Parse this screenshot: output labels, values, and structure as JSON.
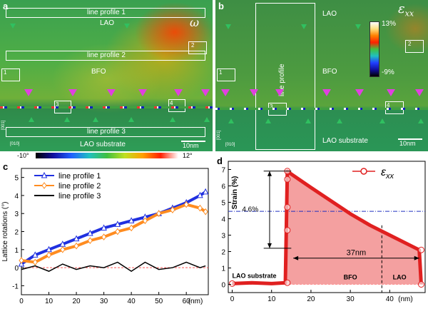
{
  "panel_a": {
    "letter": "a",
    "label_lao": "LAO",
    "label_bfo": "BFO",
    "label_substrate": "LAO substrate",
    "omega": "ω",
    "line_profile_1": "line profile 1",
    "line_profile_2": "line profile 2",
    "line_profile_3": "line profile 3",
    "box_1": "1",
    "box_2": "2",
    "box_3": "3",
    "box_4": "4",
    "axis_001": "[001]",
    "axis_010": "[010]",
    "scalebar": "10nm",
    "colorbar_min": "-10°",
    "colorbar_max": "12°"
  },
  "panel_b": {
    "letter": "b",
    "label_lao": "LAO",
    "label_bfo": "BFO",
    "label_substrate": "LAO substrate",
    "line_profile": "line profile",
    "epsilon": "ε",
    "epsilon_sub": "xx",
    "box_1": "1",
    "box_2": "2",
    "box_3": "3",
    "box_4": "4",
    "axis_001": "[001]",
    "axis_010": "[010]",
    "scalebar": "10nm",
    "colorbar_max": "13%",
    "colorbar_min": "-9%"
  },
  "chart_data": [
    {
      "panel": "c",
      "type": "line",
      "ylabel": "Lattice rotations (°)",
      "xlabel": "(nm)",
      "xlim": [
        0,
        68
      ],
      "ylim": [
        -1.5,
        5.5
      ],
      "xticks": [
        0,
        10,
        20,
        30,
        40,
        50,
        60
      ],
      "yticks": [
        -1,
        0,
        1,
        2,
        3,
        4,
        5
      ],
      "legend_position": "top-left",
      "series": [
        {
          "name": "line profile 1",
          "color": "#2030e0",
          "marker": "triangle",
          "x": [
            0,
            5,
            10,
            15,
            20,
            25,
            30,
            35,
            40,
            45,
            50,
            55,
            60,
            65,
            67
          ],
          "y": [
            0.2,
            0.7,
            1.0,
            1.3,
            1.6,
            1.9,
            2.2,
            2.4,
            2.6,
            2.8,
            3.0,
            3.3,
            3.6,
            4.0,
            4.2
          ]
        },
        {
          "name": "line profile 2",
          "color": "#ff8c20",
          "marker": "diamond",
          "x": [
            0,
            5,
            10,
            15,
            20,
            25,
            30,
            35,
            40,
            45,
            50,
            55,
            60,
            65,
            67
          ],
          "y": [
            0.4,
            0.3,
            0.7,
            1.0,
            1.2,
            1.5,
            1.7,
            2.0,
            2.2,
            2.6,
            3.0,
            3.2,
            3.5,
            3.3,
            3.1
          ]
        },
        {
          "name": "line profile 3",
          "color": "#000000",
          "marker": "none",
          "x": [
            0,
            5,
            10,
            15,
            20,
            25,
            30,
            35,
            40,
            45,
            50,
            55,
            60,
            65,
            67
          ],
          "y": [
            -0.1,
            0.1,
            -0.2,
            0.2,
            -0.1,
            0.1,
            0.0,
            0.3,
            -0.2,
            0.3,
            -0.1,
            0.0,
            0.3,
            0.0,
            0.1
          ]
        }
      ]
    },
    {
      "panel": "d",
      "type": "area",
      "ylabel": "Strain (%)",
      "xlabel": "(nm)",
      "xlim": [
        -1,
        49
      ],
      "ylim": [
        -0.5,
        7.5
      ],
      "xticks": [
        0,
        10,
        20,
        30,
        40
      ],
      "yticks": [
        0,
        1,
        2,
        3,
        4,
        5,
        6,
        7
      ],
      "legend_position": "top-right",
      "series": [
        {
          "name": "ε",
          "name_sub": "xx",
          "color": "#e02020",
          "x": [
            0,
            5,
            10,
            13.5,
            14,
            14.5,
            20,
            25,
            30,
            35,
            40,
            45,
            47.5,
            48
          ],
          "y": [
            0.05,
            0.1,
            0.05,
            0.1,
            6.9,
            6.8,
            5.9,
            5.1,
            4.3,
            3.6,
            3.0,
            2.4,
            2.1,
            0.0
          ]
        }
      ],
      "annotations": {
        "strain_diff": "4.6%",
        "length": "37nm",
        "region_substrate": "LAO substrate",
        "region_bfo": "BFO",
        "region_lao": "LAO"
      },
      "mean_line_y": 4.45,
      "interface_x": 38
    }
  ]
}
